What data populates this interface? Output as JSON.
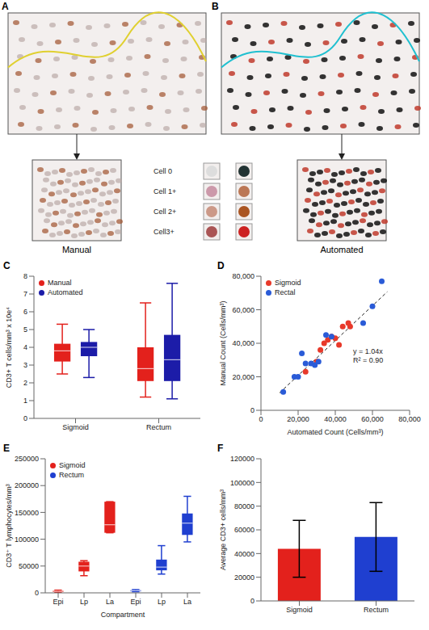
{
  "image_panels": [
    {
      "panel": "A",
      "caption": "Manual"
    },
    {
      "panel": "B",
      "caption": "Automated"
    }
  ],
  "cell_key": [
    "Cell 0",
    "Cell 1+",
    "Cell 2+",
    "Cell3+"
  ],
  "chart_data": [
    {
      "panel": "C",
      "type": "box",
      "categories": [
        "Sigmoid",
        "Rectum"
      ],
      "y_label": "CD3+ T cells/mm³ x 10e⁴",
      "ylim": [
        0,
        8
      ],
      "yticks": [
        0,
        1,
        2,
        3,
        4,
        5,
        6,
        7,
        8
      ],
      "grid": false,
      "legend": "upper left",
      "series": [
        {
          "name": "Manual",
          "color": "#e3211c",
          "values": [
            {
              "min": 2.5,
              "q1": 3.2,
              "median": 3.8,
              "q3": 4.2,
              "max": 5.3
            },
            {
              "min": 1.2,
              "q1": 2.1,
              "median": 2.8,
              "q3": 4.0,
              "max": 6.5
            }
          ]
        },
        {
          "name": "Automated",
          "color": "#1c1ca8",
          "values": [
            {
              "min": 2.3,
              "q1": 3.5,
              "median": 4.0,
              "q3": 4.3,
              "max": 5.0
            },
            {
              "min": 1.1,
              "q1": 2.1,
              "median": 3.3,
              "q3": 4.7,
              "max": 7.6
            }
          ]
        }
      ]
    },
    {
      "panel": "D",
      "type": "scatter",
      "x_label": "Automated Count (Cells/mm³)",
      "y_label": "Manual Count (Cells/mm³)",
      "xlim": [
        0,
        80000
      ],
      "xticks": [
        0,
        {
          "value": 20000,
          "label": "20,000"
        },
        {
          "value": 40000,
          "label": "40,000"
        },
        {
          "value": 60000,
          "label": "60,000"
        },
        {
          "value": 80000,
          "label": "80,000"
        }
      ],
      "ylim": [
        0,
        80000
      ],
      "yticks": [
        0,
        {
          "value": 20000,
          "label": "20,000"
        },
        {
          "value": 40000,
          "label": "40,000"
        },
        {
          "value": 60000,
          "label": "60,000"
        },
        {
          "value": 80000,
          "label": "80,000"
        }
      ],
      "grid": false,
      "legend": "upper left",
      "series": [
        {
          "name": "Sigmoid",
          "color": "#e8392a",
          "x": [
            24000,
            30000,
            32000,
            34000,
            36000,
            38000,
            40000,
            42000,
            44000,
            48000,
            47000
          ],
          "values": [
            23000,
            29000,
            36000,
            40000,
            42000,
            44000,
            43000,
            39000,
            50000,
            50000,
            52000
          ]
        },
        {
          "name": "Rectal",
          "color": "#2a5bd7",
          "x": [
            12000,
            18000,
            20000,
            22000,
            24000,
            27000,
            29000,
            31000,
            35000,
            38000,
            55000,
            60000,
            65000
          ],
          "values": [
            11000,
            20000,
            20000,
            34000,
            28000,
            28000,
            27000,
            29000,
            45000,
            44000,
            52000,
            62000,
            77000
          ]
        }
      ],
      "trendline": {
        "slope": 1.04,
        "x": [
          10000,
          68000
        ],
        "line_style": "dashed"
      },
      "annotations": [
        "y = 1.04x",
        "R² = 0.90"
      ]
    },
    {
      "panel": "E",
      "type": "box",
      "categories": [
        "Epi",
        "Lp",
        "La",
        "Epi",
        "Lp",
        "La"
      ],
      "x_label": "Compartment",
      "y_label": "CD3⁺ T lymphocytes/mm³",
      "ylim": [
        0,
        250000
      ],
      "yticks": [
        0,
        50000,
        100000,
        150000,
        200000,
        250000
      ],
      "grid": false,
      "legend": "upper left",
      "series": [
        {
          "name": "Sigmoid",
          "color": "#e3211c",
          "values": [
            {
              "min": 1000,
              "q1": 2000,
              "median": 3000,
              "q3": 4000,
              "max": 5000
            },
            {
              "min": 32000,
              "q1": 40000,
              "median": 50000,
              "q3": 58000,
              "max": 60000
            },
            {
              "min": 112000,
              "q1": 112000,
              "median": 127000,
              "q3": 170000,
              "max": 170000
            },
            null,
            null,
            null
          ]
        },
        {
          "name": "Rectum",
          "color": "#1f3fd0",
          "values": [
            null,
            null,
            null,
            {
              "min": 2000,
              "q1": 3000,
              "median": 4000,
              "q3": 5000,
              "max": 6000
            },
            {
              "min": 35000,
              "q1": 42000,
              "median": 48000,
              "q3": 62000,
              "max": 88000
            },
            {
              "min": 95000,
              "q1": 108000,
              "median": 130000,
              "q3": 148000,
              "max": 180000
            }
          ]
        }
      ]
    },
    {
      "panel": "F",
      "type": "bar",
      "categories": [
        "Sigmoid",
        "Rectum"
      ],
      "values": [
        44000,
        54000
      ],
      "error": [
        24000,
        29000
      ],
      "colors": [
        "#e3211c",
        "#1f3fd0"
      ],
      "y_label": "Average CD3+ cells/mm³",
      "ylim": [
        0,
        120000
      ],
      "yticks": [
        0,
        20000,
        40000,
        60000,
        80000,
        100000,
        120000
      ],
      "grid": false
    }
  ]
}
